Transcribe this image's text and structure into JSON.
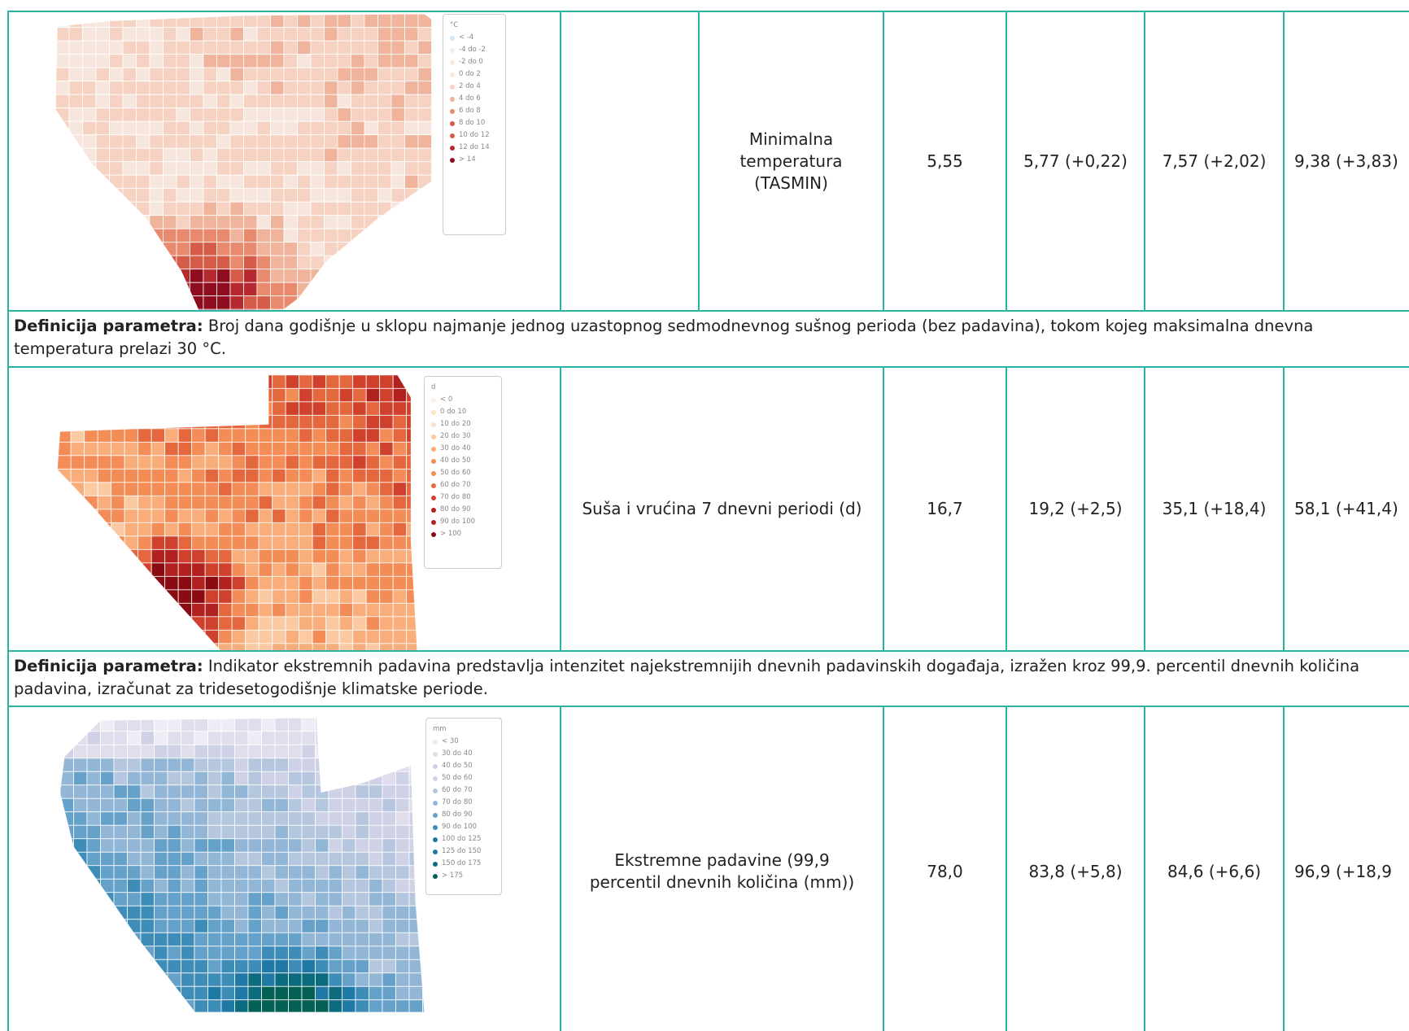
{
  "rows": [
    {
      "map": {
        "unit": "°C",
        "legend": [
          "< -4",
          "-4 do -2",
          "-2 do 0",
          "0 do 2",
          "2 do 4",
          "4 do 6",
          "6 do 8",
          "8 do 10",
          "10 do 12",
          "12 do 14",
          "> 14"
        ]
      },
      "parameter": "Minimalna temperatura (TASMIN)",
      "values": [
        "5,55",
        "5,77 (+0,22)",
        "7,57 (+2,02)",
        "9,38 (+3,83)"
      ]
    },
    {
      "map": {
        "unit": "d",
        "legend": [
          "< 0",
          "0 do 10",
          "10 do 20",
          "20 do 30",
          "30 do 40",
          "40 do 50",
          "50 do 60",
          "60 do 70",
          "70 do 80",
          "80 do 90",
          "90 do 100",
          "> 100"
        ]
      },
      "parameter": "Suša i vrućina 7 dnevni periodi (d)",
      "values": [
        "16,7",
        "19,2 (+2,5)",
        "35,1 (+18,4)",
        "58,1 (+41,4)"
      ]
    },
    {
      "map": {
        "unit": "mm",
        "legend": [
          "< 30",
          "30 do 40",
          "40 do 50",
          "50 do 60",
          "60 do 70",
          "70 do 80",
          "80 do 90",
          "90 do 100",
          "100 do 125",
          "125 do 150",
          "150 do 175",
          "> 175"
        ]
      },
      "parameter": "Ekstremne padavine (99,9 percentil dnevnih količina (mm))",
      "values": [
        "78,0",
        "83,8 (+5,8)",
        "84,6 (+6,6)",
        "96,9 (+18,9"
      ]
    }
  ],
  "definitions": [
    {
      "label": "Definicija parametra:",
      "text": "Broj dana godišnje u sklopu najmanje jednog uzastopnog sedmodnevnog sušnog perioda (bez padavina), tokom kojeg maksimalna dnevna temperatura prelazi 30 °C."
    },
    {
      "label": "Definicija parametra:",
      "text": "Indikator ekstremnih padavina predstavlja intenzitet najekstremnijih dnevnih padavinskih događaja, izražen kroz 99,9. percentil dnevnih količina padavina, izračunat za tridesetogodišnje klimatske periode."
    }
  ]
}
